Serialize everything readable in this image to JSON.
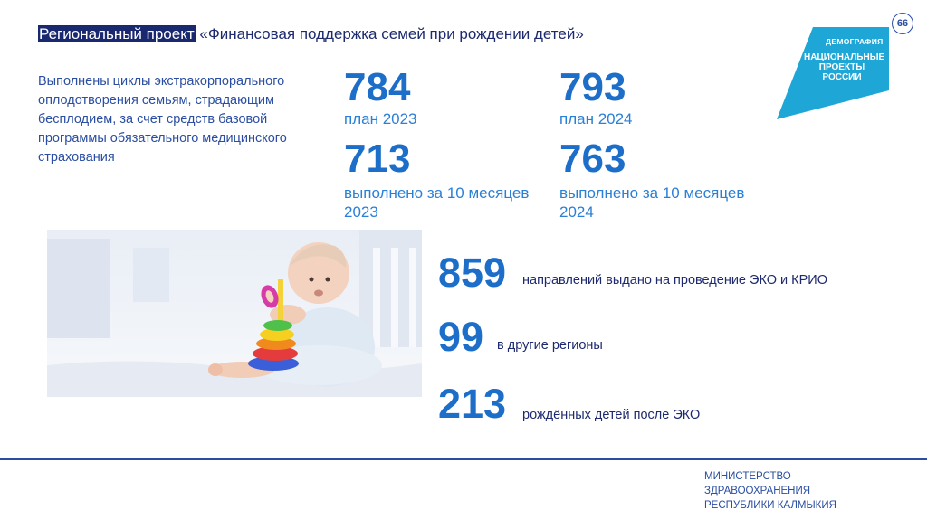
{
  "header": {
    "title_highlight": "Региональный проект",
    "title_rest": " «Финансовая поддержка семей при рождении детей»",
    "page_number": "66"
  },
  "logo": {
    "top": "ДЕМОГРАФИЯ",
    "line1": "НАЦИОНАЛЬНЫЕ",
    "line2": "ПРОЕКТЫ",
    "line3": "РОССИИ",
    "color": "#1ea6d6"
  },
  "description": "Выполнены циклы экстракорпорального оплодотворения семьям, страдающим бесплодием, за счет средств базовой программы обязательного медицинского страхования",
  "stats": {
    "plan_2023": {
      "value": "784",
      "label": "план 2023"
    },
    "plan_2024": {
      "value": "793",
      "label": "план 2024"
    },
    "done_2023": {
      "value": "713",
      "label": "выполнено за 10 месяцев 2023"
    },
    "done_2024": {
      "value": "763",
      "label": "выполнено за 10 месяцев 2024"
    }
  },
  "facts": [
    {
      "value": "859",
      "text": "направлений выдано на проведение ЭКО и КРИО"
    },
    {
      "value": "99",
      "text": "в другие регионы"
    },
    {
      "value": "213",
      "text": "рождённых детей после ЭКО"
    }
  ],
  "footer": {
    "line1": "МИНИСТЕРСТВО",
    "line2": "ЗДРАВООХРАНЕНИЯ",
    "line3": "РЕСПУБЛИКИ КАЛМЫКИЯ"
  },
  "colors": {
    "accent": "#1c6ec9",
    "title_bg": "#1a2870"
  }
}
